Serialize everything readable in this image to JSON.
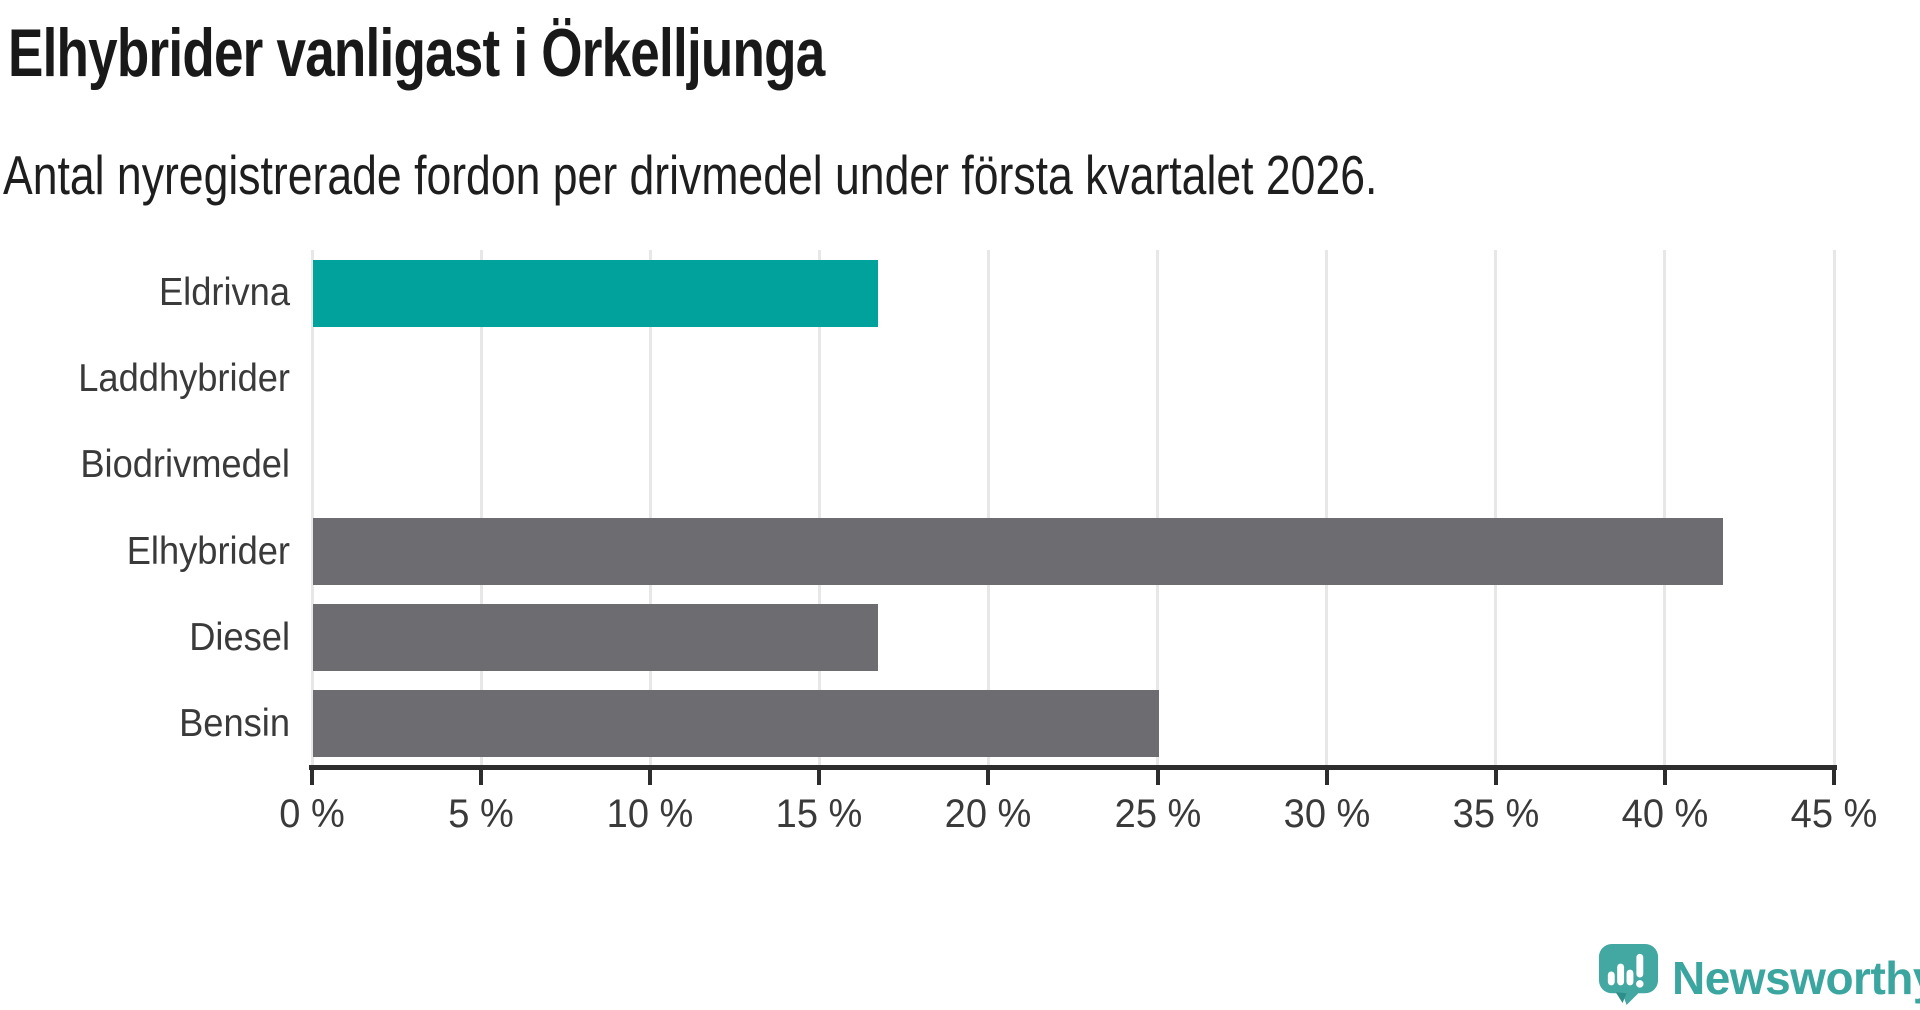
{
  "title": "Elhybrider vanligast i Örkelljunga",
  "subtitle": "Antal nyregistrerade fordon per drivmedel under första kvartalet 2026.",
  "chart_data": {
    "type": "bar",
    "orientation": "horizontal",
    "title": "Elhybrider vanligast i Örkelljunga",
    "subtitle": "Antal nyregistrerade fordon per drivmedel under första kvartalet 2026.",
    "categories": [
      "Eldrivna",
      "Laddhybrider",
      "Biodrivmedel",
      "Elhybrider",
      "Diesel",
      "Bensin"
    ],
    "values": [
      16.7,
      0,
      0,
      41.7,
      16.7,
      25.0
    ],
    "unit": "%",
    "xlim": [
      0,
      45
    ],
    "tick_values": [
      0,
      5,
      10,
      15,
      20,
      25,
      30,
      35,
      40,
      45
    ],
    "tick_labels": [
      "0 %",
      "5 %",
      "10 %",
      "15 %",
      "20 %",
      "25 %",
      "30 %",
      "35 %",
      "40 %",
      "45 %"
    ],
    "grid": true,
    "legend": "none",
    "highlight_index": 0,
    "highlight_color": "#00a29b",
    "default_color": "#6c6c71"
  },
  "colors": {
    "background": "#ffffff",
    "bar_highlight": "#00a29b",
    "bar_default": "#6c6c71",
    "gridline": "#e7e7e7",
    "axis": "#2d2d2d",
    "title_text": "#191919",
    "label_text": "#3a3a3a",
    "brand_teal": "#3ba59f"
  },
  "footer": {
    "brand": "Newsworthy"
  }
}
